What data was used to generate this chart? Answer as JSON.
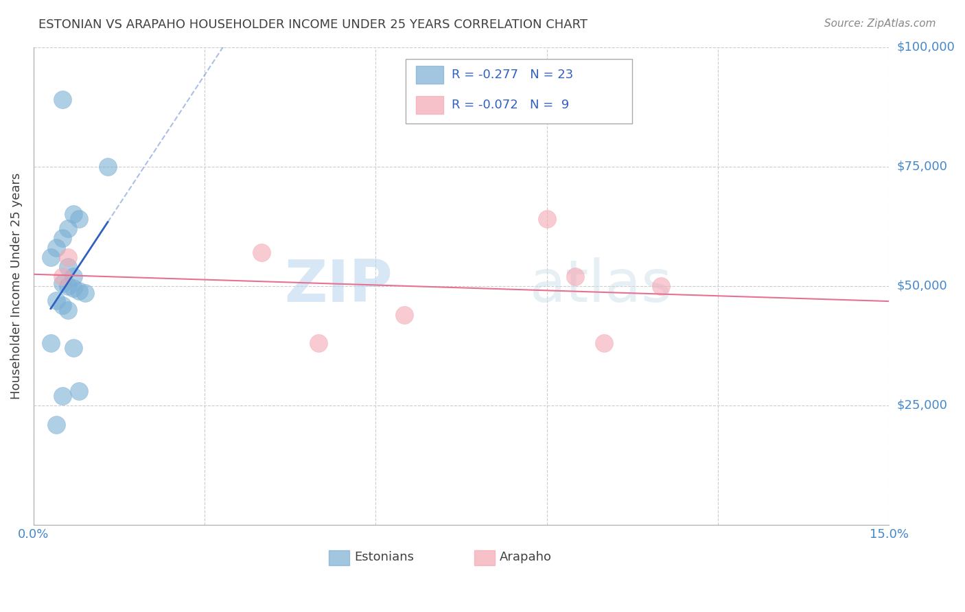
{
  "title": "ESTONIAN VS ARAPAHO HOUSEHOLDER INCOME UNDER 25 YEARS CORRELATION CHART",
  "source": "Source: ZipAtlas.com",
  "ylabel": "Householder Income Under 25 years",
  "watermark_zip": "ZIP",
  "watermark_atlas": "atlas",
  "xlim": [
    0.0,
    0.15
  ],
  "ylim": [
    0,
    100000
  ],
  "xticks": [
    0.0,
    0.03,
    0.06,
    0.09,
    0.12,
    0.15
  ],
  "xticklabels": [
    "0.0%",
    "",
    "",
    "",
    "",
    "15.0%"
  ],
  "yticks": [
    0,
    25000,
    50000,
    75000,
    100000
  ],
  "yticklabels": [
    "",
    "$25,000",
    "$50,000",
    "$75,000",
    "$100,000"
  ],
  "estonian_x": [
    0.005,
    0.013,
    0.007,
    0.008,
    0.006,
    0.005,
    0.004,
    0.003,
    0.006,
    0.007,
    0.005,
    0.006,
    0.007,
    0.008,
    0.009,
    0.004,
    0.005,
    0.006,
    0.003,
    0.007,
    0.008,
    0.005,
    0.004
  ],
  "estonian_y": [
    89000,
    75000,
    65000,
    64000,
    62000,
    60000,
    58000,
    56000,
    54000,
    52000,
    50500,
    50000,
    49500,
    49000,
    48500,
    47000,
    46000,
    45000,
    38000,
    37000,
    28000,
    27000,
    21000
  ],
  "arapaho_x": [
    0.006,
    0.005,
    0.04,
    0.065,
    0.09,
    0.1,
    0.11,
    0.095,
    0.05
  ],
  "arapaho_y": [
    56000,
    52000,
    57000,
    44000,
    64000,
    38000,
    50000,
    52000,
    38000
  ],
  "r_estonian": -0.277,
  "n_estonian": 23,
  "r_arapaho": -0.072,
  "n_arapaho": 9,
  "estonian_color": "#7bafd4",
  "arapaho_color": "#f4a7b3",
  "estonian_line_color": "#3060c0",
  "arapaho_line_color": "#e87090",
  "legend_text_color": "#3060c0",
  "title_color": "#404040",
  "source_color": "#888888",
  "right_label_color": "#4488cc",
  "background_color": "#ffffff",
  "grid_color": "#cccccc"
}
